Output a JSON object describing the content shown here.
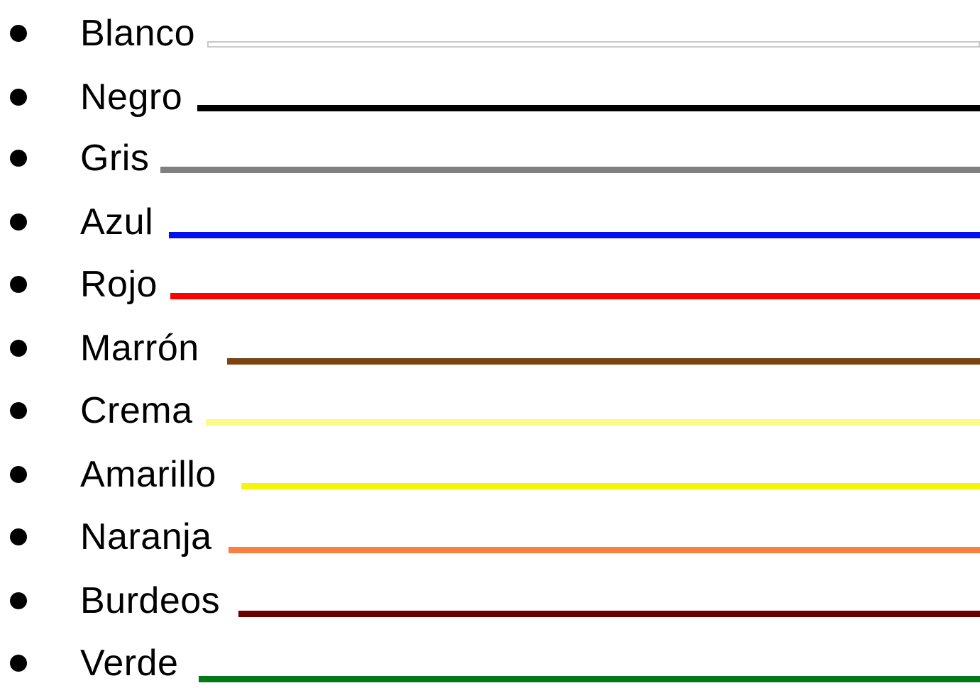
{
  "colors": [
    {
      "label": "Blanco",
      "hex": "#ffffff",
      "border": "#c8c8c8"
    },
    {
      "label": "Negro",
      "hex": "#000000"
    },
    {
      "label": "Gris",
      "hex": "#808080"
    },
    {
      "label": "Azul",
      "hex": "#0010f0"
    },
    {
      "label": "Rojo",
      "hex": "#ff0000"
    },
    {
      "label": "Marrón",
      "hex": "#7b4412"
    },
    {
      "label": "Crema",
      "hex": "#fbfb8a"
    },
    {
      "label": "Amarillo",
      "hex": "#f5f50a"
    },
    {
      "label": "Naranja",
      "hex": "#f98041"
    },
    {
      "label": "Burdeos",
      "hex": "#6b0000"
    },
    {
      "label": "Verde",
      "hex": "#007a18"
    }
  ],
  "bullet_glyph": "bullet-dot"
}
